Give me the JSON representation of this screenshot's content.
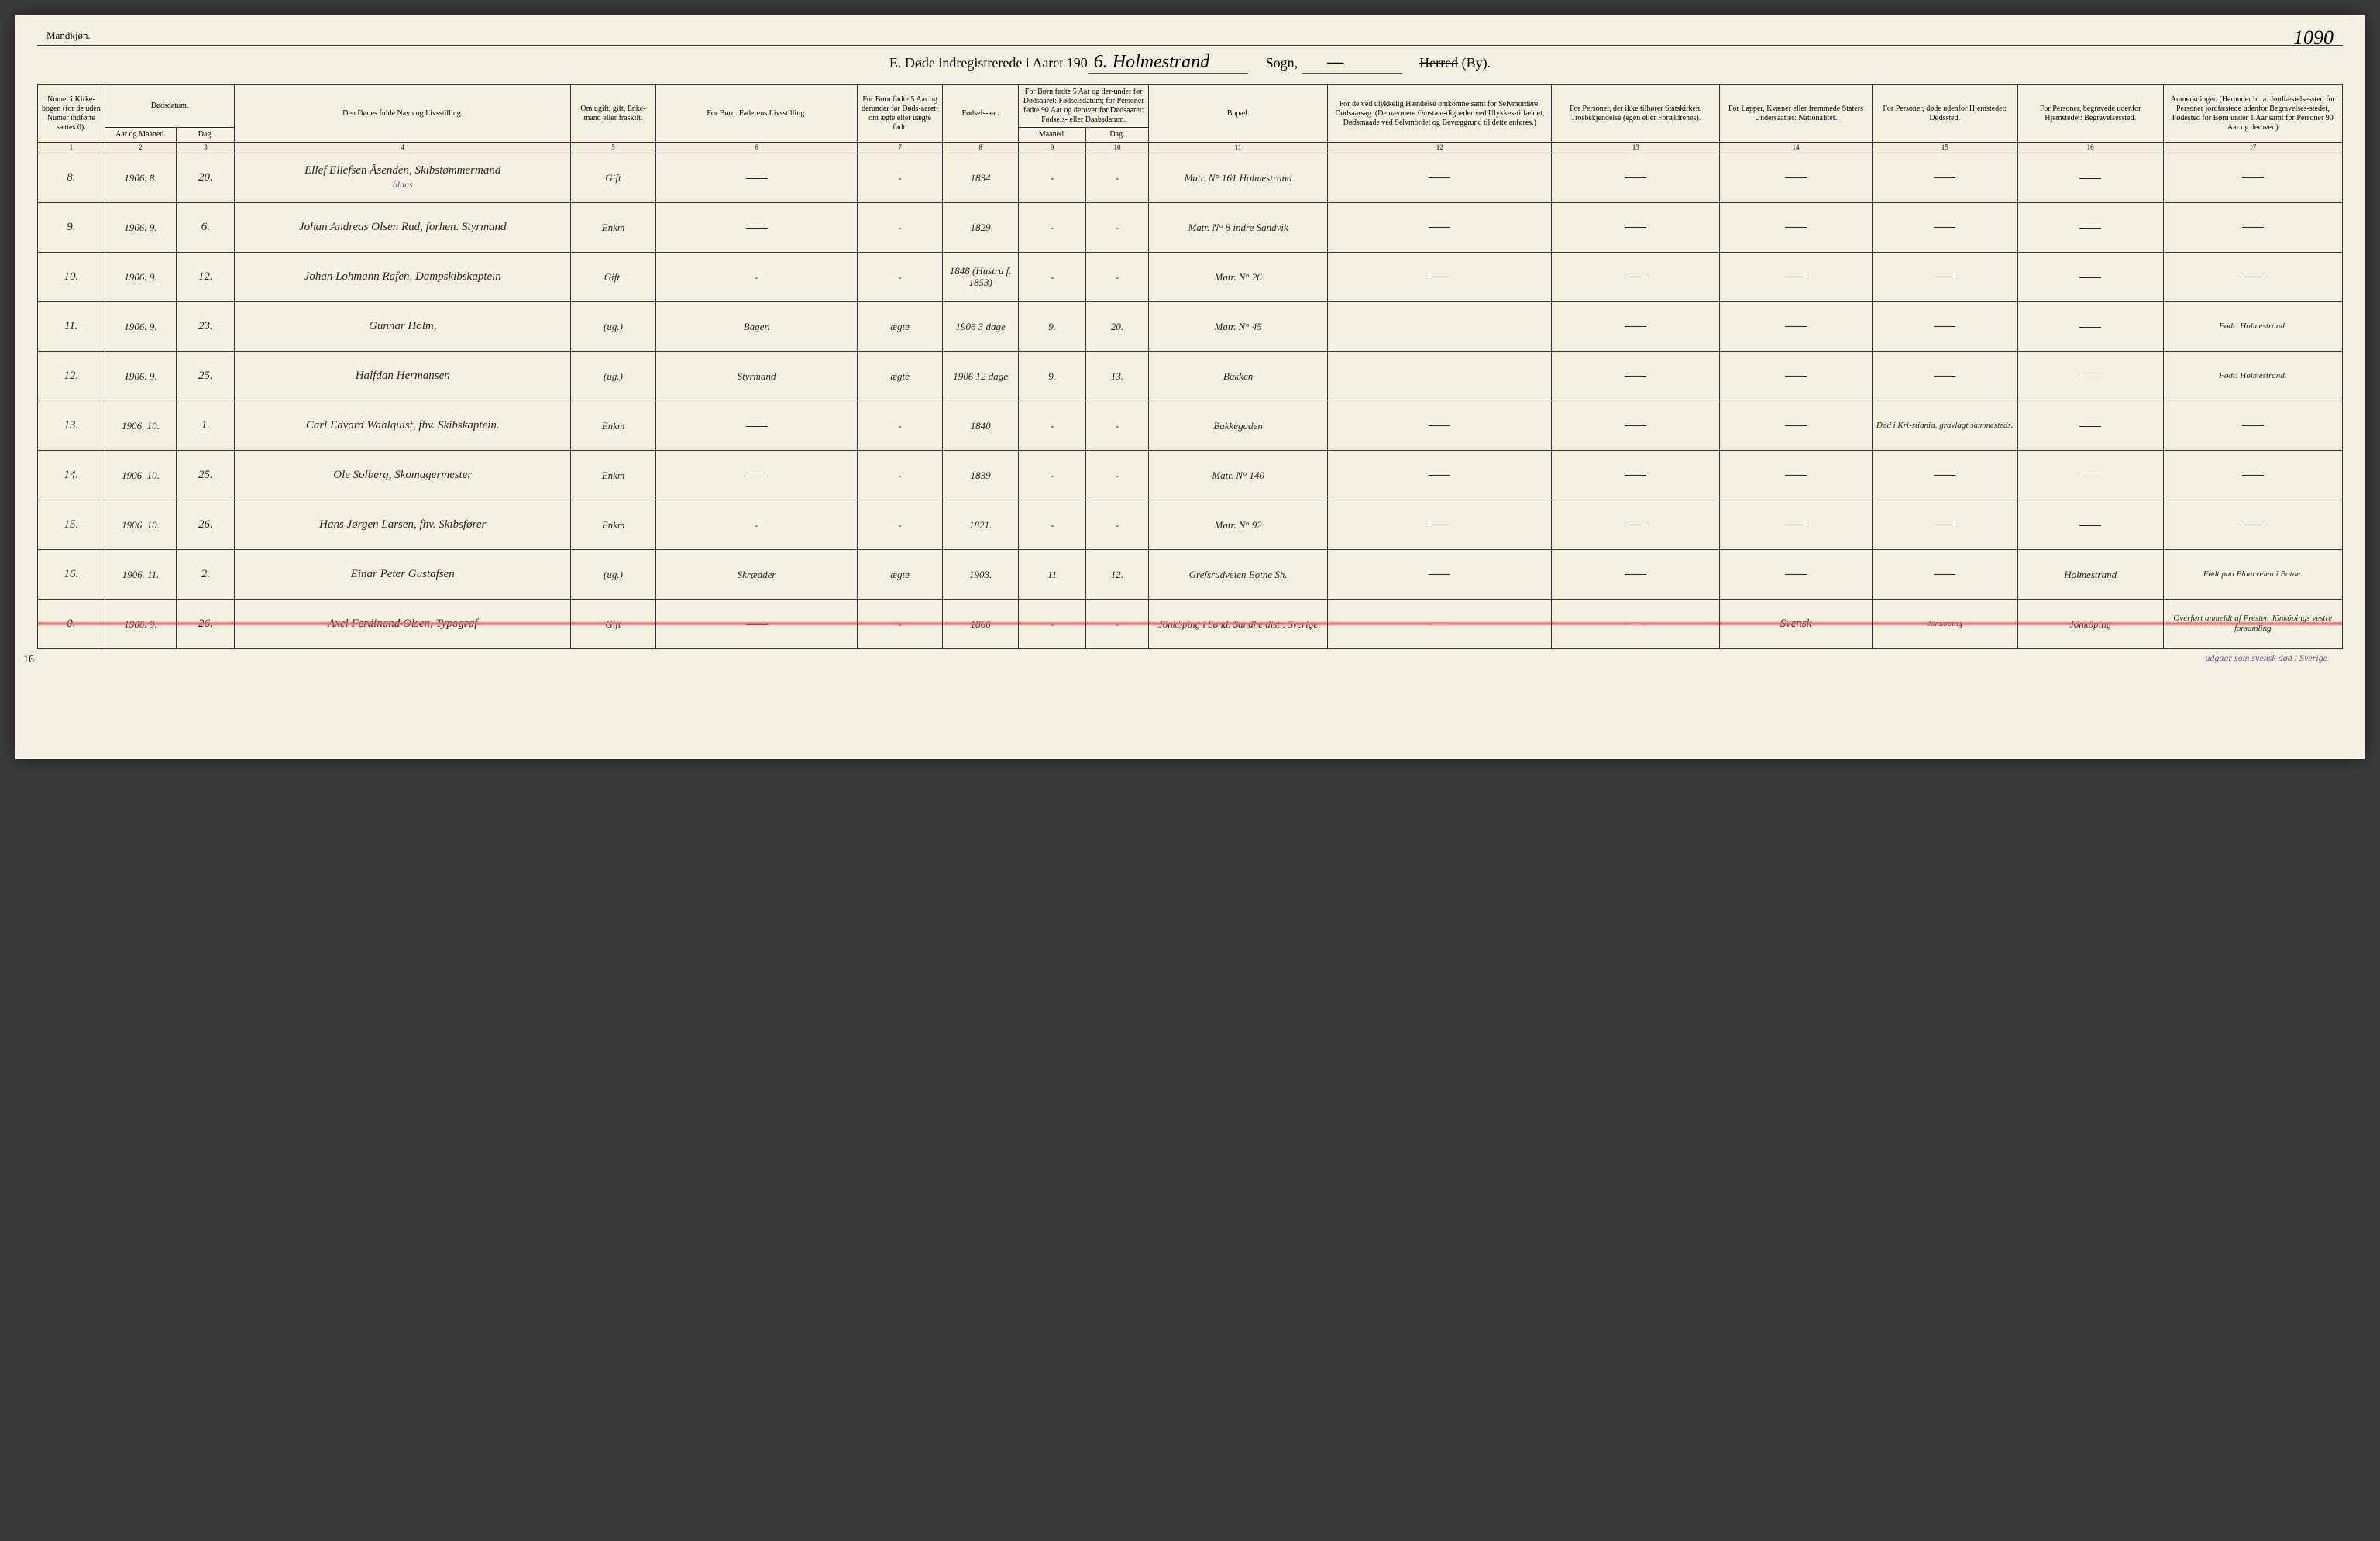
{
  "page": {
    "gender_label": "Mandkjøn.",
    "page_number": "1090",
    "title_prefix": "E.   Døde indregistrerede i Aaret 190",
    "year_suffix": "6.",
    "parish_cursive": "Holmestrand",
    "sogn_label": "Sogn,",
    "sogn_cursive": "—",
    "herred_struck": "Herred",
    "by_label": "(By).",
    "footnote": "udgaar som svensk død i Sverige",
    "margin_tick": "16"
  },
  "columns": {
    "h1": "Numer i Kirke-bogen (for de uden Numer indførte sættes 0).",
    "h2a": "Dødsdatum.",
    "h2": "Aar og Maaned.",
    "h3": "Dag.",
    "h4": "Den Dødes fulde Navn og Livsstilling.",
    "h5": "Om ugift, gift, Enke-mand eller fraskilt.",
    "h6": "For Børn: Faderens Livsstilling.",
    "h7": "For Børn fødte 5 Aar og derunder før Døds-aaret: om ægte eller uægte født.",
    "h8": "Fødsels-aar.",
    "h9_10_top": "For Børn fødte 5 Aar og der-under før Dødsaaret: Fødselsdatum; for Personer fødte 90 Aar og derover før Dødsaaret: Fødsels- eller Daabsdatum.",
    "h9": "Maaned.",
    "h10": "Dag.",
    "h11": "Bopæl.",
    "h12": "For de ved ulykkelig Hændelse omkomne samt for Selvmordere: Dødsaarsag. (De nærmere Omstæn-digheder ved Ulykkes-tilfældet, Dødsmaade ved Selvmordet og Bevæggrund til dette anføres.)",
    "h13": "For Personer, der ikke tilhører Statskirken, Trosbekjendelse (egen eller Forældrenes).",
    "h14": "For Lapper, Kvæner eller fremmede Staters Undersaatter: Nationalitet.",
    "h15": "For Personer, døde udenfor Hjemstedet: Dødssted.",
    "h16": "For Personer, begravede udenfor Hjemstedet: Begravelsessted.",
    "h17": "Anmerkninger. (Herunder bl. a. Jordfæstelsessted for Personer jordfæstede udenfor Begravelses-stedet, Fødested for Børn under 1 Aar samt for Personer 90 Aar og derover.)"
  },
  "colnums": [
    "1",
    "2",
    "3",
    "4",
    "5",
    "6",
    "7",
    "8",
    "9",
    "10",
    "11",
    "12",
    "13",
    "14",
    "15",
    "16",
    "17"
  ],
  "rows": [
    {
      "n": "8.",
      "ym": "1906. 8.",
      "d": "20.",
      "name": "Ellef Ellefsen Åsenden, Skibstømmermand",
      "name_note": "blaas",
      "civ": "Gift",
      "father": "—",
      "leg": "-",
      "birth": "1834",
      "bm": "-",
      "bd": "-",
      "res": "Matr. N° 161 Holmestrand",
      "c12": "—",
      "c13": "—",
      "c14": "—",
      "c15": "—",
      "c16": "—",
      "c17": "—"
    },
    {
      "n": "9.",
      "ym": "1906. 9.",
      "d": "6.",
      "name": "Johan Andreas Olsen Rud, forhen. Styrmand",
      "civ": "Enkm",
      "father": "—",
      "leg": "-",
      "birth": "1829",
      "bm": "-",
      "bd": "-",
      "res": "Matr. N° 8  indre Sandvik",
      "c12": "—",
      "c13": "—",
      "c14": "—",
      "c15": "—",
      "c16": "—",
      "c17": "—"
    },
    {
      "n": "10.",
      "ym": "1906. 9.",
      "d": "12.",
      "name": "Johan Lohmann Rafen, Dampskibskaptein",
      "civ": "Gift.",
      "father": "-",
      "leg": "-",
      "birth": "1848 (Hustru f. 1853)",
      "bm": "-",
      "bd": "-",
      "res": "Matr. N° 26",
      "c12": "—",
      "c13": "—",
      "c14": "—",
      "c15": "—",
      "c16": "—",
      "c17": "—"
    },
    {
      "n": "11.",
      "ym": "1906. 9.",
      "d": "23.",
      "name": "Gunnar Holm,",
      "civ": "(ug.)",
      "father": "Bager.",
      "leg": "ægte",
      "birth": "1906  3 dage",
      "bm": "9.",
      "bd": "20.",
      "res": "Matr. N° 45",
      "c12": "",
      "c13": "—",
      "c14": "—",
      "c15": "—",
      "c16": "—",
      "c17": "Født: Holmestrand."
    },
    {
      "n": "12.",
      "ym": "1906. 9.",
      "d": "25.",
      "name": "Halfdan Hermansen",
      "civ": "(ug.)",
      "father": "Styrmand",
      "leg": "ægte",
      "birth": "1906  12 dage",
      "bm": "9.",
      "bd": "13.",
      "res": "Bakken",
      "c12": "",
      "c13": "—",
      "c14": "—",
      "c15": "—",
      "c16": "—",
      "c17": "Født: Holmestrand."
    },
    {
      "n": "13.",
      "ym": "1906. 10.",
      "d": "1.",
      "name": "Carl Edvard Wahlquist, fhv. Skibskaptein.",
      "civ": "Enkm",
      "father": "—",
      "leg": "-",
      "birth": "1840",
      "bm": "-",
      "bd": "-",
      "res": "Bakkegaden",
      "c12": "—",
      "c13": "—",
      "c14": "—",
      "c15": "Død i Kri-stiania, gravlagt sammesteds.",
      "c16": "—",
      "c17": "—"
    },
    {
      "n": "14.",
      "ym": "1906. 10.",
      "d": "25.",
      "name": "Ole Solberg, Skomagermester",
      "civ": "Enkm",
      "father": "—",
      "leg": "-",
      "birth": "1839",
      "bm": "-",
      "bd": "-",
      "res": "Matr. N° 140",
      "c12": "—",
      "c13": "—",
      "c14": "—",
      "c15": "—",
      "c16": "—",
      "c17": "—"
    },
    {
      "n": "15.",
      "ym": "1906. 10.",
      "d": "26.",
      "name": "Hans Jørgen Larsen, fhv. Skibsfører",
      "civ": "Enkm",
      "father": "-",
      "leg": "-",
      "birth": "1821.",
      "bm": "-",
      "bd": "-",
      "res": "Matr. N° 92",
      "c12": "—",
      "c13": "—",
      "c14": "—",
      "c15": "—",
      "c16": "—",
      "c17": "—"
    },
    {
      "n": "16.",
      "ym": "1906. 11.",
      "d": "2.",
      "name": "Einar Peter Gustafsen",
      "civ": "(ug.)",
      "father": "Skrædder",
      "leg": "ægte",
      "birth": "1903.",
      "bm": "11",
      "bd": "12.",
      "res": "Grefsrudveien Botne Sh.",
      "c12": "—",
      "c13": "—",
      "c14": "—",
      "c15": "—",
      "c16": "Holmestrand",
      "c17": "Født paa Blaarveien i Botne."
    },
    {
      "n": "0.",
      "ym": "1906. 9.",
      "d": "26.",
      "name": "Axel Ferdinand Olsen, Typograf",
      "civ": "Gift",
      "father": "—",
      "leg": "-",
      "birth": "1866",
      "bm": "-",
      "bd": "-",
      "res": "Jönköping i Sønd. Sandhe distr. Sverige",
      "c12": "—",
      "c13": "—",
      "c14": "Svensk",
      "c15": "Jönköping",
      "c16": "Jönköping",
      "c17": "Overført anmeldt af Presten Jönköpings vestre forsamling",
      "struck": true
    }
  ]
}
